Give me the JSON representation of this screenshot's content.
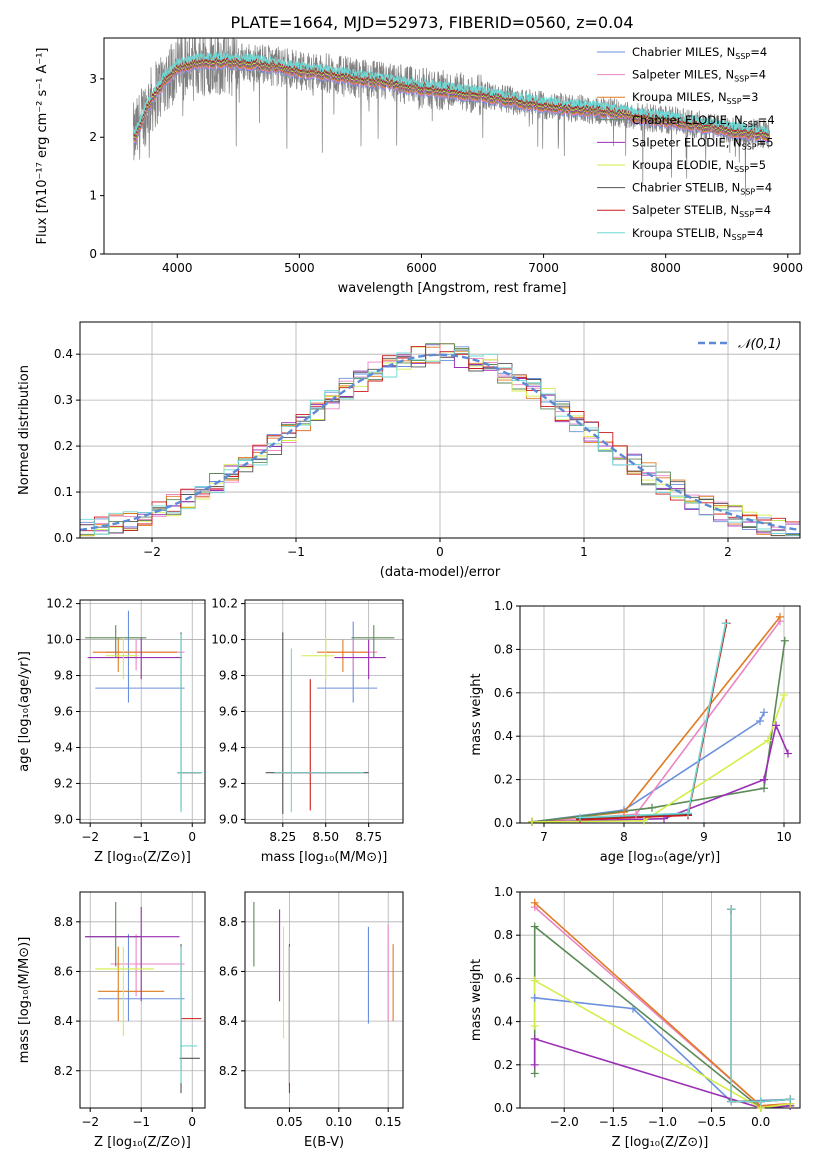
{
  "figure_title": "PLATE=1664, MJD=52973, FIBERID=0560, z=0.04",
  "colors": {
    "Chabrier MILES": "#6a8fdc",
    "Salpeter MILES": "#ea86c3",
    "Kroupa MILES": "#e07a1f",
    "Chabrier ELODIE": "#5b8a57",
    "Salpeter ELODIE": "#9a2fb5",
    "Kroupa ELODIE": "#d4ee4a",
    "Chabrier STELIB": "#555555",
    "Salpeter STELIB": "#cc1a1a",
    "Kroupa STELIB": "#6fd8d4",
    "spectrum": "#808080",
    "normal_curve": "#5b8ad6",
    "grid": "#b0b0b0"
  },
  "chart_data": [
    {
      "id": "spectrum",
      "type": "line",
      "title": "PLATE=1664, MJD=52973, FIBERID=0560, z=0.04",
      "xlabel": "wavelength [Angstrom, rest frame]",
      "ylabel": "Flux [fλ10⁻¹⁷ erg cm⁻² s⁻¹ A⁻¹]",
      "xlim": [
        3400,
        9100
      ],
      "ylim": [
        0,
        3.7
      ],
      "xticks": [
        4000,
        5000,
        6000,
        7000,
        8000,
        9000
      ],
      "yticks": [
        0,
        1,
        2,
        3
      ],
      "grid": false,
      "legend_position": "top-right",
      "legend": [
        {
          "series": "Chabrier MILES",
          "imf": "Chabrier",
          "lib": "MILES",
          "nssp": "=4"
        },
        {
          "series": "Salpeter MILES",
          "imf": "Salpeter",
          "lib": "MILES",
          "nssp": "=4"
        },
        {
          "series": "Kroupa MILES",
          "imf": "Kroupa",
          "lib": "MILES",
          "nssp": "=3"
        },
        {
          "series": "Chabrier ELODIE",
          "imf": "Chabrier",
          "lib": "ELODIE",
          "nssp": "=4"
        },
        {
          "series": "Salpeter ELODIE",
          "imf": "Salpeter",
          "lib": "ELODIE",
          "nssp": "=5"
        },
        {
          "series": "Kroupa ELODIE",
          "imf": "Kroupa",
          "lib": "ELODIE",
          "nssp": "=5"
        },
        {
          "series": "Chabrier STELIB",
          "imf": "Chabrier",
          "lib": "STELIB",
          "nssp": "=4"
        },
        {
          "series": "Salpeter STELIB",
          "imf": "Salpeter",
          "lib": "STELIB",
          "nssp": "=4"
        },
        {
          "series": "Kroupa STELIB",
          "imf": "Kroupa",
          "lib": "STELIB",
          "nssp": "=4"
        }
      ],
      "continuum": {
        "x": [
          3650,
          3750,
          3900,
          4000,
          4200,
          4400,
          4600,
          4800,
          5000,
          5200,
          5500,
          6000,
          6500,
          7000,
          7500,
          7800,
          8000,
          8300,
          8600,
          8800
        ],
        "y": [
          2.0,
          2.5,
          3.0,
          3.2,
          3.3,
          3.3,
          3.28,
          3.22,
          3.15,
          3.1,
          3.0,
          2.85,
          2.72,
          2.55,
          2.45,
          2.35,
          2.3,
          2.2,
          2.1,
          2.05
        ]
      },
      "data_range": [
        3640,
        8850
      ]
    },
    {
      "id": "residuals",
      "type": "bar",
      "xlabel": "(data-model)/error",
      "ylabel": "Normed distribution",
      "xlim": [
        -2.5,
        2.5
      ],
      "ylim": [
        0,
        0.47
      ],
      "xticks": [
        -2,
        -1,
        0,
        1,
        2
      ],
      "yticks": [
        0.0,
        0.1,
        0.2,
        0.3,
        0.4
      ],
      "grid": true,
      "legend_position": "top-right",
      "legend": [
        {
          "label": "𝒩(0,1)"
        }
      ],
      "bin_width": 0.1,
      "normal_mu": 0,
      "normal_sigma": 1
    },
    {
      "id": "age_vs_Z",
      "type": "scatter",
      "xlabel": "Z [log₁₀(Z/Z⊙)]",
      "ylabel": "age  [log₁₀(age/yr)]",
      "xlim": [
        -2.2,
        0.25
      ],
      "ylim": [
        8.98,
        10.22
      ],
      "xticks": [
        -2,
        -1,
        0
      ],
      "yticks": [
        9.0,
        9.2,
        9.4,
        9.6,
        9.8,
        10.0,
        10.2
      ],
      "grid": true,
      "points": [
        {
          "series": "Chabrier MILES",
          "x": -1.25,
          "y": 9.73,
          "xlo": -1.9,
          "xhi": -0.15,
          "ylo": 9.65,
          "yhi": 10.16
        },
        {
          "series": "Salpeter MILES",
          "x": -1.1,
          "y": 9.93,
          "xlo": -1.7,
          "xhi": -0.15,
          "ylo": 9.83,
          "yhi": 10.0
        },
        {
          "series": "Kroupa MILES",
          "x": -1.45,
          "y": 9.93,
          "xlo": -1.95,
          "xhi": -0.3,
          "ylo": 9.82,
          "yhi": 10.01
        },
        {
          "series": "Chabrier ELODIE",
          "x": -1.5,
          "y": 10.01,
          "xlo": -2.1,
          "xhi": -0.9,
          "ylo": 9.9,
          "yhi": 10.08
        },
        {
          "series": "Salpeter ELODIE",
          "x": -1.0,
          "y": 9.9,
          "xlo": -2.05,
          "xhi": -0.2,
          "ylo": 9.78,
          "yhi": 10.01
        },
        {
          "series": "Kroupa ELODIE",
          "x": -1.35,
          "y": 9.91,
          "xlo": -1.7,
          "xhi": -1.05,
          "ylo": 9.78,
          "yhi": 10.01
        },
        {
          "series": "Chabrier STELIB",
          "x": -0.22,
          "y": 9.26,
          "xlo": -0.28,
          "xhi": 0.18,
          "ylo": 9.05,
          "yhi": 10.04
        },
        {
          "series": "Salpeter STELIB",
          "x": -0.22,
          "y": 9.26,
          "xlo": -0.28,
          "xhi": 0.15,
          "ylo": 9.06,
          "yhi": 10.02
        },
        {
          "series": "Kroupa STELIB",
          "x": -0.22,
          "y": 9.26,
          "xlo": -0.3,
          "xhi": 0.2,
          "ylo": 9.04,
          "yhi": 10.03
        }
      ]
    },
    {
      "id": "age_vs_mass",
      "type": "scatter",
      "xlabel": "mass [log₁₀(M/M⊙)]",
      "ylabel": "",
      "xlim": [
        8.03,
        8.95
      ],
      "ylim": [
        8.98,
        10.22
      ],
      "xticks": [
        8.25,
        8.5,
        8.75
      ],
      "yticks": [
        9.0,
        9.2,
        9.4,
        9.6,
        9.8,
        10.0,
        10.2
      ],
      "grid": true,
      "points": [
        {
          "series": "Chabrier MILES",
          "x": 8.66,
          "y": 9.73,
          "xlo": 8.45,
          "xhi": 8.8,
          "ylo": 9.65,
          "yhi": 10.1
        },
        {
          "series": "Salpeter MILES",
          "x": 8.66,
          "y": 9.93,
          "xlo": 8.5,
          "xhi": 8.8,
          "ylo": 9.82,
          "yhi": 10.0
        },
        {
          "series": "Kroupa MILES",
          "x": 8.6,
          "y": 9.93,
          "xlo": 8.45,
          "xhi": 8.75,
          "ylo": 9.82,
          "yhi": 10.0
        },
        {
          "series": "Chabrier ELODIE",
          "x": 8.78,
          "y": 10.01,
          "xlo": 8.65,
          "xhi": 8.9,
          "ylo": 9.9,
          "yhi": 10.08
        },
        {
          "series": "Salpeter ELODIE",
          "x": 8.75,
          "y": 9.9,
          "xlo": 8.55,
          "xhi": 8.85,
          "ylo": 9.78,
          "yhi": 10.0
        },
        {
          "series": "Kroupa ELODIE",
          "x": 8.5,
          "y": 9.91,
          "xlo": 8.36,
          "xhi": 8.55,
          "ylo": 9.78,
          "yhi": 10.01
        },
        {
          "series": "Chabrier STELIB",
          "x": 8.25,
          "y": 9.26,
          "xlo": 8.15,
          "xhi": 8.75,
          "ylo": 9.03,
          "yhi": 10.04
        },
        {
          "series": "Salpeter STELIB",
          "x": 8.41,
          "y": 9.26,
          "xlo": 8.2,
          "xhi": 8.7,
          "ylo": 9.05,
          "yhi": 9.78
        },
        {
          "series": "Kroupa STELIB",
          "x": 8.3,
          "y": 9.26,
          "xlo": 8.2,
          "xhi": 8.72,
          "ylo": 9.04,
          "yhi": 9.95
        }
      ]
    },
    {
      "id": "weight_vs_age",
      "type": "line",
      "xlabel": "age  [log₁₀(age/yr)]",
      "ylabel": "mass weight",
      "xlim": [
        6.7,
        10.2
      ],
      "ylim": [
        0,
        1.0
      ],
      "xticks": [
        7,
        8,
        9,
        10
      ],
      "yticks": [
        0.0,
        0.2,
        0.4,
        0.6,
        0.8,
        1.0
      ],
      "grid": true,
      "series": [
        {
          "series": "Chabrier MILES",
          "x": [
            6.85,
            8.0,
            9.7,
            9.75
          ],
          "y": [
            0.005,
            0.06,
            0.47,
            0.51
          ]
        },
        {
          "series": "Salpeter MILES",
          "x": [
            6.85,
            8.15,
            9.95
          ],
          "y": [
            0.005,
            0.04,
            0.93
          ]
        },
        {
          "series": "Kroupa MILES",
          "x": [
            6.85,
            8.0,
            9.95
          ],
          "y": [
            0.005,
            0.05,
            0.95
          ]
        },
        {
          "series": "Chabrier ELODIE",
          "x": [
            6.85,
            8.35,
            9.75,
            10.01
          ],
          "y": [
            0.005,
            0.07,
            0.16,
            0.84
          ]
        },
        {
          "series": "Salpeter ELODIE",
          "x": [
            6.85,
            8.5,
            9.75,
            9.9,
            10.05
          ],
          "y": [
            0.005,
            0.02,
            0.2,
            0.45,
            0.32
          ]
        },
        {
          "series": "Kroupa ELODIE",
          "x": [
            6.85,
            8.25,
            9.8,
            10.0
          ],
          "y": [
            0.005,
            0.01,
            0.38,
            0.59
          ]
        },
        {
          "series": "Chabrier STELIB",
          "x": [
            7.45,
            8.8,
            9.28
          ],
          "y": [
            0.02,
            0.04,
            0.92
          ]
        },
        {
          "series": "Salpeter STELIB",
          "x": [
            7.45,
            8.8,
            9.28
          ],
          "y": [
            0.015,
            0.035,
            0.92
          ]
        },
        {
          "series": "Kroupa STELIB",
          "x": [
            7.45,
            8.8,
            9.27
          ],
          "y": [
            0.025,
            0.045,
            0.92
          ]
        }
      ]
    },
    {
      "id": "mass_vs_Z",
      "type": "scatter",
      "xlabel": "Z [log₁₀(Z/Z⊙)]",
      "ylabel": "mass [log₁₀(M/M⊙)]",
      "xlim": [
        -2.2,
        0.25
      ],
      "ylim": [
        8.05,
        8.92
      ],
      "xticks": [
        -2,
        -1,
        0
      ],
      "yticks": [
        8.2,
        8.4,
        8.6,
        8.8
      ],
      "grid": true,
      "points": [
        {
          "series": "Chabrier MILES",
          "x": -1.25,
          "y": 8.49,
          "xlo": -1.85,
          "xhi": -0.15,
          "ylo": 8.4,
          "yhi": 8.75
        },
        {
          "series": "Salpeter MILES",
          "x": -1.1,
          "y": 8.63,
          "xlo": -1.6,
          "xhi": -0.15,
          "ylo": 8.5,
          "yhi": 8.75
        },
        {
          "series": "Kroupa MILES",
          "x": -1.45,
          "y": 8.52,
          "xlo": -1.85,
          "xhi": -0.55,
          "ylo": 8.4,
          "yhi": 8.7
        },
        {
          "series": "Chabrier ELODIE",
          "x": -1.5,
          "y": 8.74,
          "xlo": -2.1,
          "xhi": -1.0,
          "ylo": 8.62,
          "yhi": 8.88
        },
        {
          "series": "Salpeter ELODIE",
          "x": -1.0,
          "y": 8.74,
          "xlo": -2.1,
          "xhi": -0.25,
          "ylo": 8.48,
          "yhi": 8.86
        },
        {
          "series": "Kroupa ELODIE",
          "x": -1.35,
          "y": 8.61,
          "xlo": -1.9,
          "xhi": -0.75,
          "ylo": 8.34,
          "yhi": 8.7
        },
        {
          "series": "Chabrier STELIB",
          "x": -0.22,
          "y": 8.25,
          "xlo": -0.25,
          "xhi": 0.15,
          "ylo": 8.11,
          "yhi": 8.71
        },
        {
          "series": "Salpeter STELIB",
          "x": -0.22,
          "y": 8.41,
          "xlo": -0.22,
          "xhi": 0.18,
          "ylo": 8.2,
          "yhi": 8.7
        },
        {
          "series": "Kroupa STELIB",
          "x": -0.22,
          "y": 8.3,
          "xlo": -0.24,
          "xhi": 0.1,
          "ylo": 8.15,
          "yhi": 8.7
        }
      ]
    },
    {
      "id": "mass_vs_ebv",
      "type": "scatter",
      "xlabel": "E(B-V)",
      "ylabel": "",
      "xlim": [
        0.005,
        0.165
      ],
      "ylim": [
        8.05,
        8.92
      ],
      "xticks": [
        0.05,
        0.1,
        0.15
      ],
      "yticks": [
        8.2,
        8.4,
        8.6,
        8.8
      ],
      "grid": true,
      "points": [
        {
          "series": "Chabrier MILES",
          "x": 0.13,
          "y": 8.58,
          "ylo": 8.39,
          "yhi": 8.78
        },
        {
          "series": "Salpeter MILES",
          "x": 0.15,
          "y": 8.63,
          "ylo": 8.4,
          "yhi": 8.79
        },
        {
          "series": "Kroupa MILES",
          "x": 0.155,
          "y": 8.55,
          "ylo": 8.4,
          "yhi": 8.71
        },
        {
          "series": "Chabrier ELODIE",
          "x": 0.014,
          "y": 8.74,
          "ylo": 8.62,
          "yhi": 8.88
        },
        {
          "series": "Salpeter ELODIE",
          "x": 0.04,
          "y": 8.7,
          "ylo": 8.48,
          "yhi": 8.85
        },
        {
          "series": "Kroupa ELODIE",
          "x": 0.044,
          "y": 8.55,
          "ylo": 8.33,
          "yhi": 8.78
        },
        {
          "series": "Chabrier STELIB",
          "x": 0.05,
          "y": 8.3,
          "ylo": 8.11,
          "yhi": 8.71
        },
        {
          "series": "Salpeter STELIB",
          "x": 0.05,
          "y": 8.35,
          "ylo": 8.14,
          "yhi": 8.7
        },
        {
          "series": "Kroupa STELIB",
          "x": 0.05,
          "y": 8.4,
          "ylo": 8.15,
          "yhi": 8.7
        }
      ]
    },
    {
      "id": "weight_vs_Z",
      "type": "line",
      "xlabel": "Z [log₁₀(Z/Z⊙)]",
      "ylabel": "mass weight",
      "xlim": [
        -2.45,
        0.4
      ],
      "ylim": [
        0,
        1.0
      ],
      "xticks": [
        -2.0,
        -1.5,
        -1.0,
        -0.5,
        0.0
      ],
      "yticks": [
        0.0,
        0.2,
        0.4,
        0.6,
        0.8,
        1.0
      ],
      "grid": true,
      "series": [
        {
          "series": "Chabrier MILES",
          "x": [
            -2.3,
            -1.3,
            -0.3,
            0.3
          ],
          "y": [
            0.51,
            0.46,
            0.03,
            0.04
          ]
        },
        {
          "series": "Salpeter MILES",
          "x": [
            -2.3,
            0.0,
            0.3
          ],
          "y": [
            0.93,
            0.01,
            0.02
          ]
        },
        {
          "series": "Kroupa MILES",
          "x": [
            -2.3,
            0.0,
            0.3
          ],
          "y": [
            0.95,
            0.01,
            0.02
          ]
        },
        {
          "series": "Chabrier ELODIE",
          "x": [
            -2.3,
            -2.3,
            0.0,
            0.3
          ],
          "y": [
            0.16,
            0.84,
            0.0,
            0.01
          ]
        },
        {
          "series": "Salpeter ELODIE",
          "x": [
            -2.3,
            -2.3,
            0.0,
            0.3
          ],
          "y": [
            0.2,
            0.32,
            0.0,
            0.01
          ]
        },
        {
          "series": "Kroupa ELODIE",
          "x": [
            -2.3,
            -2.3,
            0.0,
            0.3
          ],
          "y": [
            0.38,
            0.59,
            0.0,
            0.02
          ]
        },
        {
          "series": "Chabrier STELIB",
          "x": [
            -0.3,
            -0.3,
            0.0,
            0.3
          ],
          "y": [
            0.92,
            0.03,
            0.03,
            0.04
          ]
        },
        {
          "series": "Salpeter STELIB",
          "x": [
            -0.3,
            -0.3,
            0.0,
            0.3
          ],
          "y": [
            0.92,
            0.03,
            0.03,
            0.04
          ]
        },
        {
          "series": "Kroupa STELIB",
          "x": [
            -0.3,
            -0.3,
            0.0,
            0.3
          ],
          "y": [
            0.92,
            0.03,
            0.03,
            0.04
          ]
        }
      ]
    }
  ]
}
